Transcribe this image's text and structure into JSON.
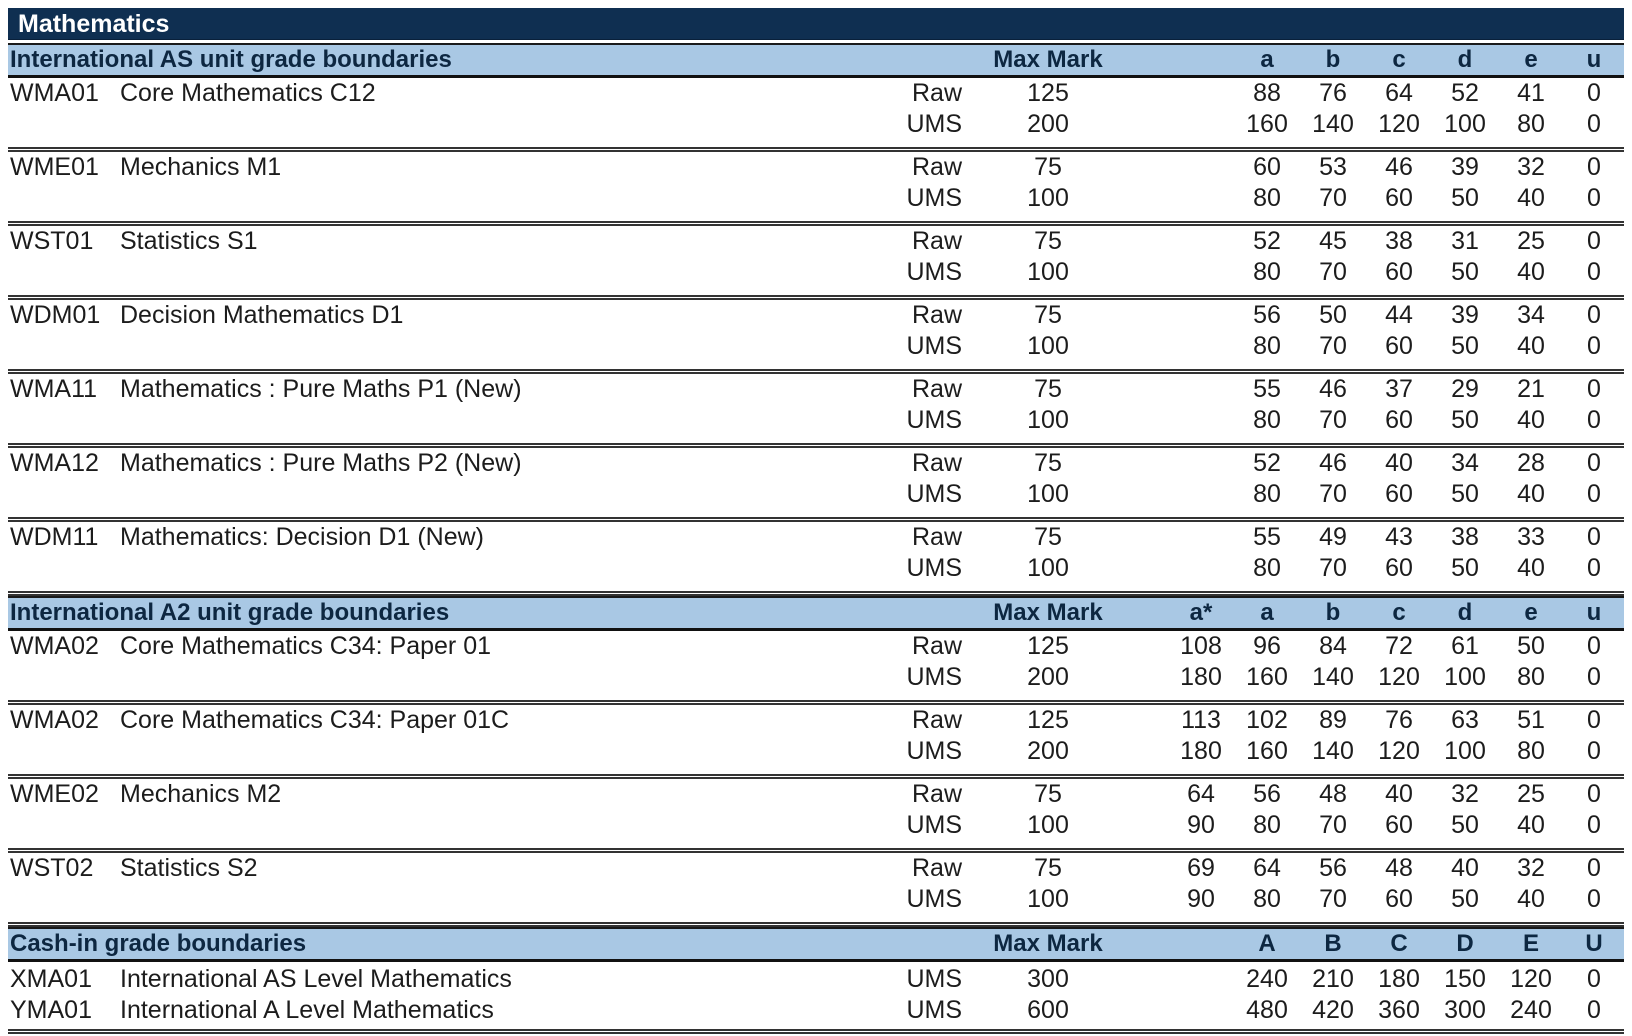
{
  "subject": "Mathematics",
  "colors": {
    "navy_bar": "#0F2F51",
    "section_band": "#A9C8E4",
    "band_text": "#0d2741",
    "body_text": "#1c1c1c",
    "rule_line": "#333333"
  },
  "columns": {
    "max_mark_label": "Max Mark",
    "raw_label": "Raw",
    "ums_label": "UMS"
  },
  "sections": [
    {
      "title": "International AS unit grade boundaries",
      "grade_headers": [
        "",
        "a",
        "b",
        "c",
        "d",
        "e",
        "u"
      ],
      "compact": false,
      "units": [
        {
          "code": "WMA01",
          "name": "Core Mathematics C12",
          "rows": [
            {
              "type": "Raw",
              "max": "125",
              "grades": [
                "",
                "88",
                "76",
                "64",
                "52",
                "41",
                "0"
              ]
            },
            {
              "type": "UMS",
              "max": "200",
              "grades": [
                "",
                "160",
                "140",
                "120",
                "100",
                "80",
                "0"
              ]
            }
          ]
        },
        {
          "code": "WME01",
          "name": "Mechanics M1",
          "rows": [
            {
              "type": "Raw",
              "max": "75",
              "grades": [
                "",
                "60",
                "53",
                "46",
                "39",
                "32",
                "0"
              ]
            },
            {
              "type": "UMS",
              "max": "100",
              "grades": [
                "",
                "80",
                "70",
                "60",
                "50",
                "40",
                "0"
              ]
            }
          ]
        },
        {
          "code": "WST01",
          "name": "Statistics S1",
          "rows": [
            {
              "type": "Raw",
              "max": "75",
              "grades": [
                "",
                "52",
                "45",
                "38",
                "31",
                "25",
                "0"
              ]
            },
            {
              "type": "UMS",
              "max": "100",
              "grades": [
                "",
                "80",
                "70",
                "60",
                "50",
                "40",
                "0"
              ]
            }
          ]
        },
        {
          "code": "WDM01",
          "name": "Decision Mathematics D1",
          "rows": [
            {
              "type": "Raw",
              "max": "75",
              "grades": [
                "",
                "56",
                "50",
                "44",
                "39",
                "34",
                "0"
              ]
            },
            {
              "type": "UMS",
              "max": "100",
              "grades": [
                "",
                "80",
                "70",
                "60",
                "50",
                "40",
                "0"
              ]
            }
          ]
        },
        {
          "code": "WMA11",
          "name": "Mathematics : Pure Maths P1 (New)",
          "rows": [
            {
              "type": "Raw",
              "max": "75",
              "grades": [
                "",
                "55",
                "46",
                "37",
                "29",
                "21",
                "0"
              ]
            },
            {
              "type": "UMS",
              "max": "100",
              "grades": [
                "",
                "80",
                "70",
                "60",
                "50",
                "40",
                "0"
              ]
            }
          ]
        },
        {
          "code": "WMA12",
          "name": "Mathematics : Pure Maths P2 (New)",
          "rows": [
            {
              "type": "Raw",
              "max": "75",
              "grades": [
                "",
                "52",
                "46",
                "40",
                "34",
                "28",
                "0"
              ]
            },
            {
              "type": "UMS",
              "max": "100",
              "grades": [
                "",
                "80",
                "70",
                "60",
                "50",
                "40",
                "0"
              ]
            }
          ]
        },
        {
          "code": "WDM11",
          "name": "Mathematics: Decision D1 (New)",
          "rows": [
            {
              "type": "Raw",
              "max": "75",
              "grades": [
                "",
                "55",
                "49",
                "43",
                "38",
                "33",
                "0"
              ]
            },
            {
              "type": "UMS",
              "max": "100",
              "grades": [
                "",
                "80",
                "70",
                "60",
                "50",
                "40",
                "0"
              ]
            }
          ]
        }
      ]
    },
    {
      "title": "International A2 unit grade boundaries",
      "grade_headers": [
        "a*",
        "a",
        "b",
        "c",
        "d",
        "e",
        "u"
      ],
      "compact": false,
      "units": [
        {
          "code": "WMA02",
          "name": "Core Mathematics C34: Paper 01",
          "rows": [
            {
              "type": "Raw",
              "max": "125",
              "grades": [
                "108",
                "96",
                "84",
                "72",
                "61",
                "50",
                "0"
              ]
            },
            {
              "type": "UMS",
              "max": "200",
              "grades": [
                "180",
                "160",
                "140",
                "120",
                "100",
                "80",
                "0"
              ]
            }
          ]
        },
        {
          "code": "WMA02",
          "name": "Core Mathematics C34: Paper 01C",
          "rows": [
            {
              "type": "Raw",
              "max": "125",
              "grades": [
                "113",
                "102",
                "89",
                "76",
                "63",
                "51",
                "0"
              ]
            },
            {
              "type": "UMS",
              "max": "200",
              "grades": [
                "180",
                "160",
                "140",
                "120",
                "100",
                "80",
                "0"
              ]
            }
          ]
        },
        {
          "code": "WME02",
          "name": "Mechanics M2",
          "rows": [
            {
              "type": "Raw",
              "max": "75",
              "grades": [
                "64",
                "56",
                "48",
                "40",
                "32",
                "25",
                "0"
              ]
            },
            {
              "type": "UMS",
              "max": "100",
              "grades": [
                "90",
                "80",
                "70",
                "60",
                "50",
                "40",
                "0"
              ]
            }
          ]
        },
        {
          "code": "WST02",
          "name": "Statistics S2",
          "rows": [
            {
              "type": "Raw",
              "max": "75",
              "grades": [
                "69",
                "64",
                "56",
                "48",
                "40",
                "32",
                "0"
              ]
            },
            {
              "type": "UMS",
              "max": "100",
              "grades": [
                "90",
                "80",
                "70",
                "60",
                "50",
                "40",
                "0"
              ]
            }
          ]
        }
      ]
    },
    {
      "title": "Cash-in grade boundaries",
      "grade_headers": [
        "",
        "A",
        "B",
        "C",
        "D",
        "E",
        "U"
      ],
      "compact": true,
      "units": [
        {
          "code": "XMA01",
          "name": "International AS Level Mathematics",
          "rows": [
            {
              "type": "UMS",
              "max": "300",
              "grades": [
                "",
                "240",
                "210",
                "180",
                "150",
                "120",
                "0"
              ]
            }
          ]
        },
        {
          "code": "YMA01",
          "name": "International A Level Mathematics",
          "rows": [
            {
              "type": "UMS",
              "max": "600",
              "grades": [
                "",
                "480",
                "420",
                "360",
                "300",
                "240",
                "0"
              ]
            }
          ]
        }
      ]
    }
  ]
}
